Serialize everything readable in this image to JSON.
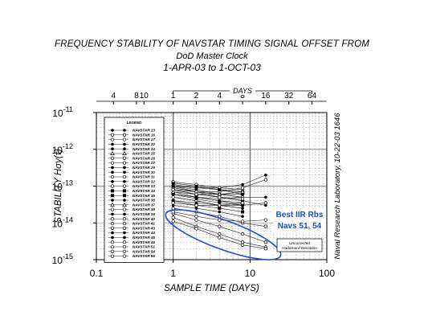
{
  "chart_data": {
    "type": "line",
    "title": "FREQUENCY STABILITY OF NAVSTAR TIMING SIGNAL OFFSET FROM",
    "subtitle": "DoD Master Clock",
    "date_range": "1-APR-03 to 1-OCT-03",
    "xlabel": "SAMPLE TIME (DAYS)",
    "ylabel": "STABILITY  Hσy(τ)",
    "top_axis_label": "DAYS",
    "x_scale": "log",
    "y_scale": "log",
    "xlim": [
      0.1,
      100
    ],
    "ylim": [
      1e-15,
      1e-11
    ],
    "x_tick_labels": [
      "0.1",
      "1",
      "10",
      "100"
    ],
    "y_tick_labels": [
      {
        "base": "10",
        "exp": "-15"
      },
      {
        "base": "10",
        "exp": "-14"
      },
      {
        "base": "10",
        "exp": "-13"
      },
      {
        "base": "10",
        "exp": "-12"
      },
      {
        "base": "10",
        "exp": "-11"
      }
    ],
    "top_ticks": [
      {
        "label": "4",
        "hours": 4
      },
      {
        "label": "8",
        "hours": 8
      },
      {
        "label": "10",
        "hours": 10
      },
      {
        "label": "1",
        "days": 1
      },
      {
        "label": "2",
        "days": 2
      },
      {
        "label": "4",
        "days": 4
      },
      {
        "label": "8",
        "days": 8
      },
      {
        "label": "16",
        "days": 16
      },
      {
        "label": "32",
        "days": 32
      },
      {
        "label": "64",
        "days": 64
      }
    ],
    "grid": true,
    "legend_title": "LEGEND",
    "legend_placement": "left inside plot",
    "series": [
      {
        "name": "NAVSTAR 13",
        "marker": "dot",
        "values": [
          [
            1,
            1e-13
          ],
          [
            2,
            8e-14
          ],
          [
            4,
            6e-14
          ],
          [
            8,
            5e-14
          ]
        ]
      },
      {
        "name": "NAVSTAR 16",
        "marker": "circle",
        "values": [
          [
            1,
            1.2e-13
          ],
          [
            2,
            1e-13
          ],
          [
            4,
            8e-14
          ],
          [
            8,
            7e-14
          ]
        ]
      },
      {
        "name": "NAVSTAR 17",
        "marker": "circle",
        "values": [
          [
            1,
            8e-14
          ],
          [
            2,
            6e-14
          ],
          [
            4,
            5e-14
          ],
          [
            8,
            4e-14
          ]
        ]
      },
      {
        "name": "NAVSTAR 22",
        "marker": "dot",
        "values": [
          [
            1,
            9e-14
          ],
          [
            2,
            7e-14
          ],
          [
            4,
            6e-14
          ],
          [
            8,
            5e-14
          ],
          [
            16,
            5e-14
          ]
        ]
      },
      {
        "name": "NAVSTAR 24",
        "marker": "dot",
        "values": [
          [
            1,
            1.1e-13
          ],
          [
            2,
            9e-14
          ],
          [
            4,
            9e-14
          ],
          [
            8,
            1.1e-13
          ],
          [
            16,
            2e-13
          ]
        ]
      },
      {
        "name": "NAVSTAR 25",
        "marker": "triangle",
        "values": [
          [
            1,
            7e-14
          ],
          [
            2,
            5e-14
          ],
          [
            4,
            4e-14
          ],
          [
            8,
            3.5e-14
          ]
        ]
      },
      {
        "name": "NAVSTAR 26",
        "marker": "circle",
        "values": [
          [
            1,
            6e-14
          ],
          [
            2,
            5e-14
          ],
          [
            4,
            4.5e-14
          ],
          [
            8,
            5e-14
          ]
        ]
      },
      {
        "name": "NAVSTAR 27",
        "marker": "circle",
        "values": [
          [
            1,
            1.3e-13
          ],
          [
            2,
            1.1e-13
          ],
          [
            4,
            9e-14
          ],
          [
            8,
            8e-14
          ]
        ]
      },
      {
        "name": "NAVSTAR 29",
        "marker": "dot",
        "values": [
          [
            1,
            1e-13
          ],
          [
            2,
            7e-14
          ],
          [
            4,
            5e-14
          ],
          [
            8,
            4e-14
          ],
          [
            16,
            3e-14
          ]
        ]
      },
      {
        "name": "NAVSTAR 30",
        "marker": "dot",
        "values": [
          [
            1,
            5e-14
          ],
          [
            2,
            4e-14
          ],
          [
            4,
            3e-14
          ],
          [
            8,
            2.5e-14
          ]
        ]
      },
      {
        "name": "NAVSTAR 31",
        "marker": "circle",
        "values": [
          [
            1,
            8e-14
          ],
          [
            2,
            7e-14
          ],
          [
            4,
            7e-14
          ],
          [
            8,
            9e-14
          ],
          [
            16,
            1.5e-13
          ]
        ]
      },
      {
        "name": "NAVSTAR 32",
        "marker": "dot",
        "values": [
          [
            1,
            6e-14
          ],
          [
            2,
            5e-14
          ],
          [
            4,
            4e-14
          ],
          [
            8,
            3e-14
          ]
        ]
      },
      {
        "name": "NAVSTAR 33",
        "marker": "circle",
        "values": [
          [
            1,
            9e-14
          ],
          [
            2,
            7e-14
          ],
          [
            4,
            6e-14
          ],
          [
            8,
            6e-14
          ]
        ]
      },
      {
        "name": "NAVSTAR 34",
        "marker": "square",
        "values": [
          [
            1,
            4e-14
          ],
          [
            2,
            3e-14
          ],
          [
            4,
            2.5e-14
          ],
          [
            8,
            2e-14
          ]
        ]
      },
      {
        "name": "NAVSTAR 35",
        "marker": "square",
        "values": [
          [
            1,
            1e-13
          ],
          [
            2,
            9e-14
          ],
          [
            4,
            8e-14
          ],
          [
            8,
            7e-14
          ]
        ]
      },
      {
        "name": "NAVSTAR 36",
        "marker": "dot",
        "values": [
          [
            1,
            3e-14
          ],
          [
            2,
            2.5e-14
          ],
          [
            4,
            2e-14
          ],
          [
            8,
            1.5e-14
          ]
        ]
      },
      {
        "name": "NAVSTAR 37",
        "marker": "triangle",
        "values": [
          [
            1,
            7e-14
          ],
          [
            2,
            6e-14
          ],
          [
            4,
            6e-14
          ],
          [
            8,
            7e-14
          ]
        ]
      },
      {
        "name": "NAVSTAR 38",
        "marker": "circle",
        "values": [
          [
            1,
            8e-14
          ],
          [
            2,
            6e-14
          ],
          [
            4,
            5e-14
          ],
          [
            8,
            4.5e-14
          ]
        ]
      },
      {
        "name": "NAVSTAR 39",
        "marker": "dot",
        "values": [
          [
            1,
            1.2e-13
          ],
          [
            2,
            1e-13
          ],
          [
            4,
            8e-14
          ],
          [
            8,
            6e-14
          ]
        ]
      },
      {
        "name": "NAVSTAR 40",
        "marker": "circle",
        "values": [
          [
            1,
            5e-14
          ],
          [
            2,
            4e-14
          ],
          [
            4,
            3e-14
          ],
          [
            8,
            3e-14
          ],
          [
            16,
            3.5e-14
          ]
        ]
      },
      {
        "name": "NAVSTAR 41",
        "marker": "circle",
        "values": [
          [
            1,
            1.8e-14
          ],
          [
            2,
            1.2e-14
          ],
          [
            4,
            8e-15
          ],
          [
            8,
            5e-15
          ],
          [
            16,
            3e-15
          ]
        ]
      },
      {
        "name": "NAVSTAR 43",
        "marker": "circle",
        "values": [
          [
            1,
            2.5e-14
          ],
          [
            2,
            2e-14
          ],
          [
            4,
            1.5e-14
          ],
          [
            8,
            1e-14
          ],
          [
            16,
            8e-15
          ]
        ]
      },
      {
        "name": "NAVSTAR 44",
        "marker": "dot",
        "values": [
          [
            1,
            6e-14
          ],
          [
            2,
            4.5e-14
          ],
          [
            4,
            3.5e-14
          ],
          [
            8,
            3e-14
          ]
        ]
      },
      {
        "name": "NAVSTAR 45",
        "marker": "dot",
        "values": [
          [
            1,
            4e-14
          ],
          [
            2,
            3.5e-14
          ],
          [
            4,
            3e-14
          ],
          [
            8,
            2.5e-14
          ]
        ]
      },
      {
        "name": "NAVSTAR 46",
        "marker": "circle",
        "values": [
          [
            1,
            3.5e-14
          ],
          [
            2,
            3e-14
          ],
          [
            4,
            3e-14
          ],
          [
            8,
            3.5e-14
          ]
        ]
      },
      {
        "name": "NAVSTAR 51",
        "marker": "circle",
        "values": [
          [
            1,
            1.4e-14
          ],
          [
            2,
            8e-15
          ],
          [
            4,
            5e-15
          ],
          [
            8,
            3e-15
          ],
          [
            16,
            2.2e-15
          ]
        ]
      },
      {
        "name": "NAVSTAR 54",
        "marker": "circle",
        "values": [
          [
            1,
            1.1e-14
          ],
          [
            2,
            7e-15
          ],
          [
            4,
            4e-15
          ],
          [
            8,
            2.5e-15
          ],
          [
            16,
            2e-15
          ]
        ]
      },
      {
        "name": "NAVSTAR 56",
        "marker": "circle",
        "values": [
          [
            1,
            2e-14
          ],
          [
            2,
            1.5e-14
          ],
          [
            4,
            1.2e-14
          ],
          [
            8,
            1.1e-14
          ],
          [
            16,
            1.2e-14
          ]
        ]
      }
    ],
    "annotations": [
      {
        "text": "Best IIR Rbs",
        "text2": "Navs 51, 54",
        "color": "#1a4fd6"
      },
      {
        "text": "Uncorrected",
        "text2": "Hadamard Deviation"
      }
    ],
    "side_text": "Naval Research Laboratory,  10-22-03  1646",
    "colors": {
      "highlight": "#1a4fd6",
      "axis": "#000000",
      "grid": "#9a9a9a"
    }
  }
}
